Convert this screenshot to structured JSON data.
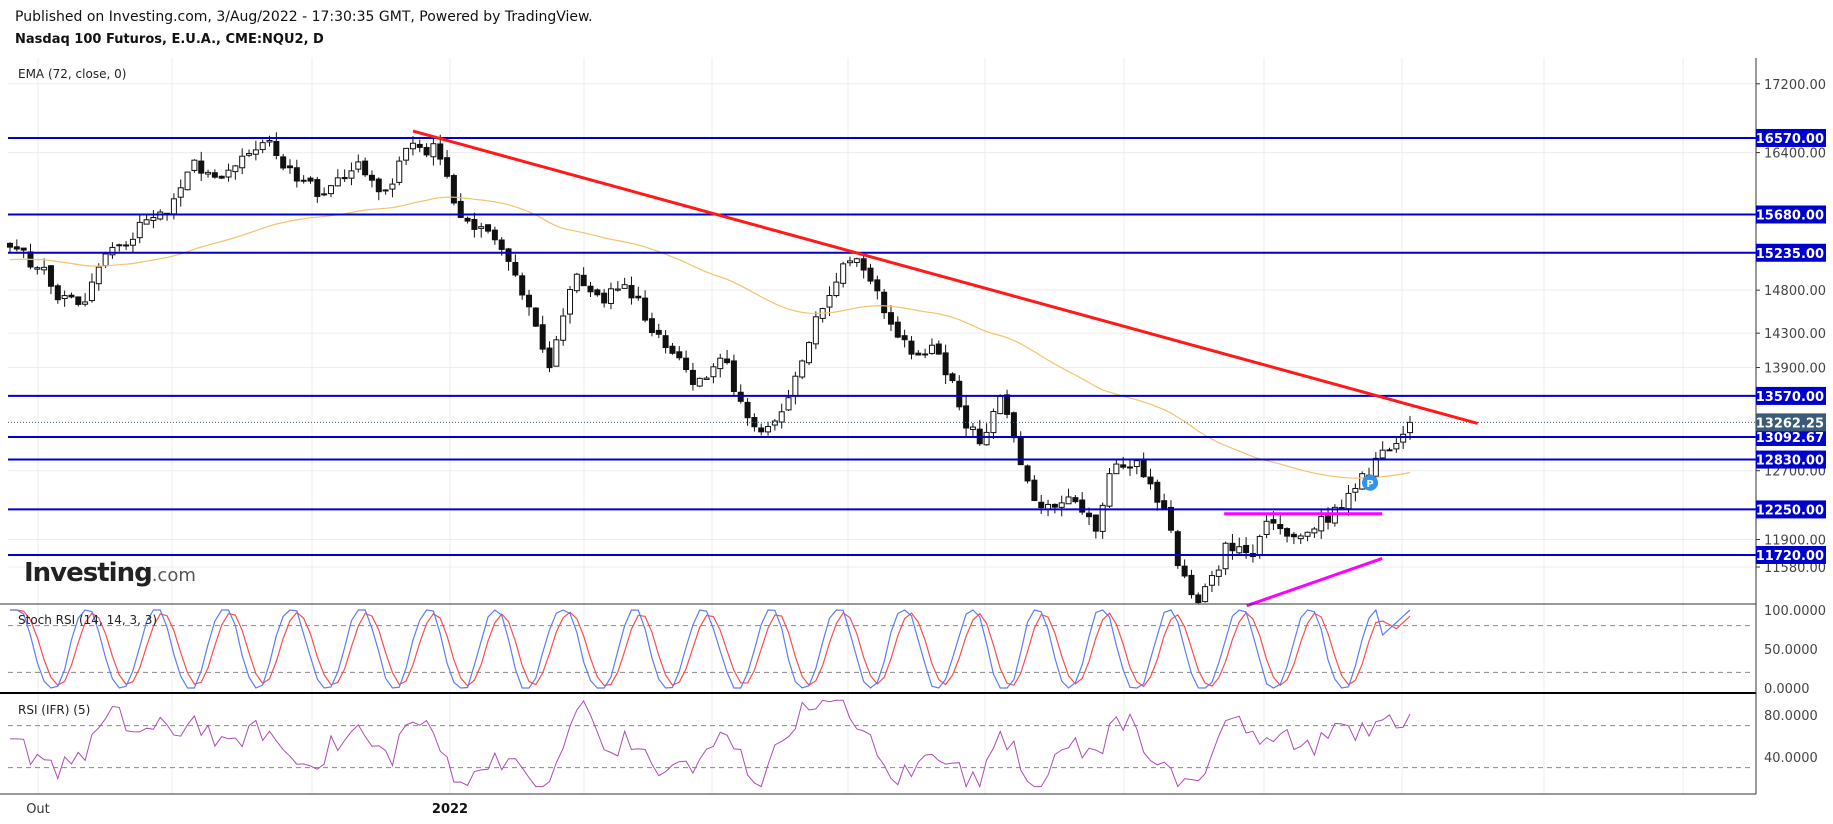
{
  "header": {
    "published": "Published on Investing.com, 3/Aug/2022 - 17:30:35 GMT, Powered by TradingView.",
    "instrument": "Nasdaq 100 Futuros, E.U.A., CME:NQU2, D"
  },
  "logo": {
    "main": "Investing",
    "suffix": ".com"
  },
  "colors": {
    "level_line": "#0000cc",
    "trend_line": "#ff1a1a",
    "pattern": "#ff00ff",
    "ema": "#f2c46a",
    "stoch_k": "#5c7cfa",
    "stoch_d": "#ff4d4d",
    "rsi": "#b04ab8",
    "current_badge": "#3c5a7a",
    "marker": "#2f93f0"
  },
  "chart_data": {
    "type": "candlestick",
    "x_labels": [
      "Out",
      "2022"
    ],
    "main": {
      "indicator_label": "EMA (72, close, 0)",
      "ylim": [
        11150,
        17500
      ],
      "price_ticks": [
        "17200.00",
        "16400.00",
        "14800.00",
        "14300.00",
        "13900.00",
        "12700.00",
        "11900.00",
        "11580.00"
      ],
      "price_tick_values": [
        17200,
        16400,
        14800,
        14300,
        13900,
        12700,
        11900,
        11580
      ],
      "levels": [
        {
          "label": "16570.00",
          "value": 16570
        },
        {
          "label": "15680.00",
          "value": 15680
        },
        {
          "label": "15235.00",
          "value": 15235
        },
        {
          "label": "13570.00",
          "value": 13570
        },
        {
          "label": "13092.67",
          "value": 13092.67
        },
        {
          "label": "12830.00",
          "value": 12830
        },
        {
          "label": "12250.00",
          "value": 12250
        },
        {
          "label": "11720.00",
          "value": 11720
        }
      ],
      "current": {
        "label": "13262.25",
        "value": 13262.25
      },
      "trendline": {
        "from_bar": 0.232,
        "from_value": 16650,
        "to_bar": 0.845,
        "to_value": 13250
      },
      "pattern_top": {
        "from_bar": 0.699,
        "to_bar": 0.79,
        "value": 12200
      },
      "pattern_bottom": {
        "from_bar": 0.712,
        "to_bar": 0.79,
        "from_value": 11130,
        "to_value": 11680
      },
      "marker": {
        "label": "P",
        "bar": 0.783,
        "value": 12560
      }
    },
    "stoch": {
      "label": "Stoch RSI (14, 14, 3, 3)",
      "ylim": [
        0,
        100
      ],
      "ticks": [
        "100.0000",
        "50.0000",
        "0.0000"
      ],
      "tick_values": [
        100,
        50,
        0
      ],
      "bands": [
        80,
        20
      ]
    },
    "rsi": {
      "label": "RSI (IFR) (5)",
      "ylim": [
        5,
        100
      ],
      "ticks": [
        "80.0000",
        "40.0000"
      ],
      "tick_values": [
        80,
        40
      ],
      "bands": [
        70,
        30
      ]
    }
  }
}
